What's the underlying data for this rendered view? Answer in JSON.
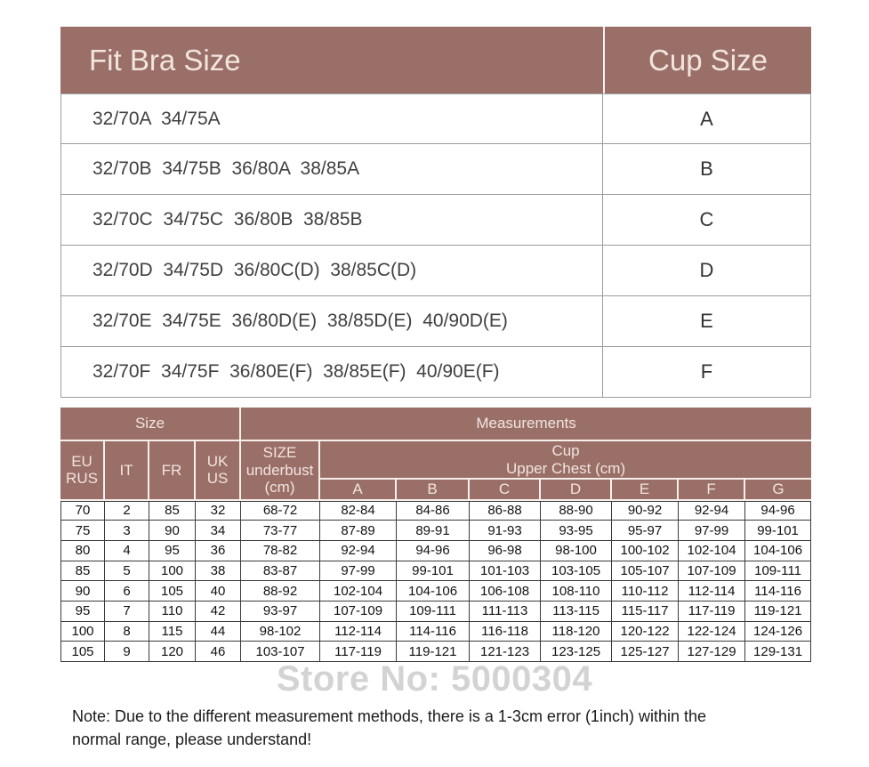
{
  "colors": {
    "header_bg": "#9a6f68",
    "header_text": "#f1e5de",
    "grid_light": "#9c9c9c",
    "grid_dark": "#3a3a3a",
    "watermark": "#d3d3d3"
  },
  "fit_table": {
    "header_fit": "Fit Bra Size",
    "header_cup": "Cup Size",
    "rows": [
      {
        "sizes": "32/70A  34/75A",
        "cup": "A"
      },
      {
        "sizes": "32/70B  34/75B  36/80A  38/85A",
        "cup": "B"
      },
      {
        "sizes": "32/70C  34/75C  36/80B  38/85B",
        "cup": "C"
      },
      {
        "sizes": "32/70D  34/75D  36/80C(D)  38/85C(D)",
        "cup": "D"
      },
      {
        "sizes": "32/70E  34/75E  36/80D(E)  38/85D(E)  40/90D(E)",
        "cup": "E"
      },
      {
        "sizes": "32/70F  34/75F  36/80E(F)  38/85E(F)  40/90E(F)",
        "cup": "F"
      }
    ]
  },
  "measure_table": {
    "size_label": "Size",
    "measurements_label": "Measurements",
    "size_cols": [
      "EU RUS",
      "IT",
      "FR",
      "UK US"
    ],
    "underbust_label": "SIZE underbust (cm)",
    "cup_label_line1": "Cup",
    "cup_label_line2": "Upper Chest (cm)",
    "cup_cols": [
      "A",
      "B",
      "C",
      "D",
      "E",
      "F",
      "G"
    ],
    "rows": [
      [
        "70",
        "2",
        "85",
        "32",
        "68-72",
        "82-84",
        "84-86",
        "86-88",
        "88-90",
        "90-92",
        "92-94",
        "94-96"
      ],
      [
        "75",
        "3",
        "90",
        "34",
        "73-77",
        "87-89",
        "89-91",
        "91-93",
        "93-95",
        "95-97",
        "97-99",
        "99-101"
      ],
      [
        "80",
        "4",
        "95",
        "36",
        "78-82",
        "92-94",
        "94-96",
        "96-98",
        "98-100",
        "100-102",
        "102-104",
        "104-106"
      ],
      [
        "85",
        "5",
        "100",
        "38",
        "83-87",
        "97-99",
        "99-101",
        "101-103",
        "103-105",
        "105-107",
        "107-109",
        "109-111"
      ],
      [
        "90",
        "6",
        "105",
        "40",
        "88-92",
        "102-104",
        "104-106",
        "106-108",
        "108-110",
        "110-112",
        "112-114",
        "114-116"
      ],
      [
        "95",
        "7",
        "110",
        "42",
        "93-97",
        "107-109",
        "109-111",
        "111-113",
        "113-115",
        "115-117",
        "117-119",
        "119-121"
      ],
      [
        "100",
        "8",
        "115",
        "44",
        "98-102",
        "112-114",
        "114-116",
        "116-118",
        "118-120",
        "120-122",
        "122-124",
        "124-126"
      ],
      [
        "105",
        "9",
        "120",
        "46",
        "103-107",
        "117-119",
        "119-121",
        "121-123",
        "123-125",
        "125-127",
        "127-129",
        "129-131"
      ]
    ]
  },
  "watermark": "Store No: 5000304",
  "note": "Note: Due to the different measurement methods, there is a 1-3cm error (1inch) within the normal range, please understand!"
}
